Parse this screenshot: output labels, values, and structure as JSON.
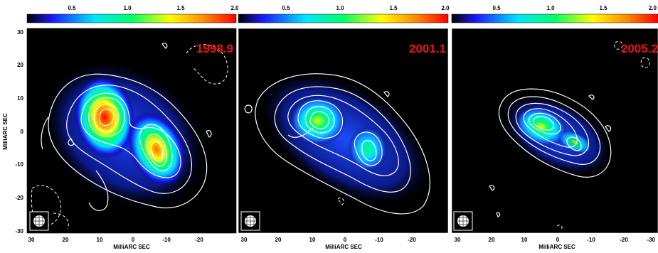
{
  "figure": {
    "panels": [
      {
        "epoch": "1998.9"
      },
      {
        "epoch": "2001.1"
      },
      {
        "epoch": "2005.2"
      }
    ],
    "colorbar_ticks": [
      "0.5",
      "1.0",
      "1.5",
      "2.0"
    ],
    "colorbar_range": [
      0,
      2.0
    ],
    "colorbar_colors": [
      "#000000",
      "#1a1aff",
      "#00e5ff",
      "#00ff66",
      "#ffff00",
      "#ff8800",
      "#ff0000"
    ],
    "x_axis": {
      "label": "MilliARC SEC",
      "ticks": [
        "30",
        "20",
        "10",
        "0",
        "-10",
        "-20",
        "-30"
      ]
    },
    "y_axis": {
      "label": "MilliARC SEC",
      "ticks": [
        "30",
        "20",
        "10",
        "0",
        "-10",
        "-20",
        "-30"
      ]
    },
    "contour_color": "#ffffff",
    "epoch_color": "#ee1111",
    "background": "#000000"
  }
}
